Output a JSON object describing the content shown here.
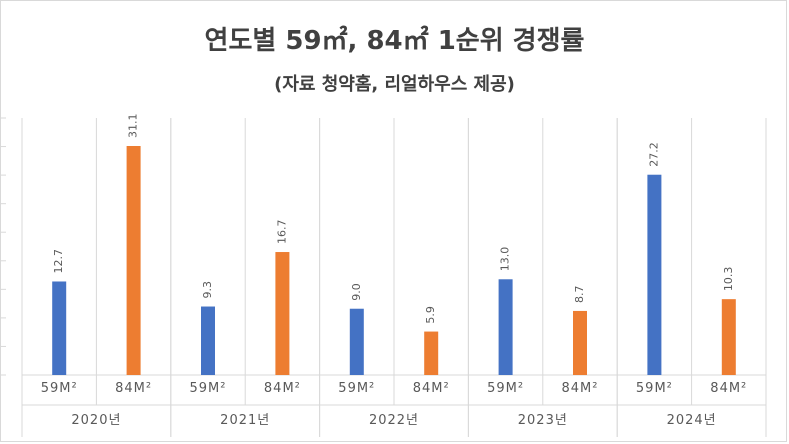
{
  "title": "연도별 59㎡, 84㎡ 1순위 경쟁률",
  "subtitle": "(자료 청약홈, 리얼하우스 제공)",
  "colors": {
    "s59": "#4472C4",
    "s84": "#ED7D31",
    "text": "#595959",
    "grid": "#d9d9d9"
  },
  "chart_data": {
    "type": "bar",
    "title": "연도별 59㎡, 84㎡ 1순위 경쟁률",
    "subtitle": "(자료 청약홈, 리얼하우스 제공)",
    "groups": [
      "2020년",
      "2021년",
      "2022년",
      "2023년",
      "2024년"
    ],
    "sub_categories": [
      "59M²",
      "84M²"
    ],
    "series": [
      {
        "values": [
          12.7,
          9.3,
          9.0,
          13.0,
          27.2
        ],
        "color": "#4472C4"
      },
      {
        "values": [
          31.1,
          16.7,
          5.9,
          8.7,
          10.3
        ],
        "color": "#ED7D31"
      }
    ],
    "ylim": [
      0,
      32
    ],
    "grid": true,
    "data_labels": true,
    "legend": "none"
  }
}
